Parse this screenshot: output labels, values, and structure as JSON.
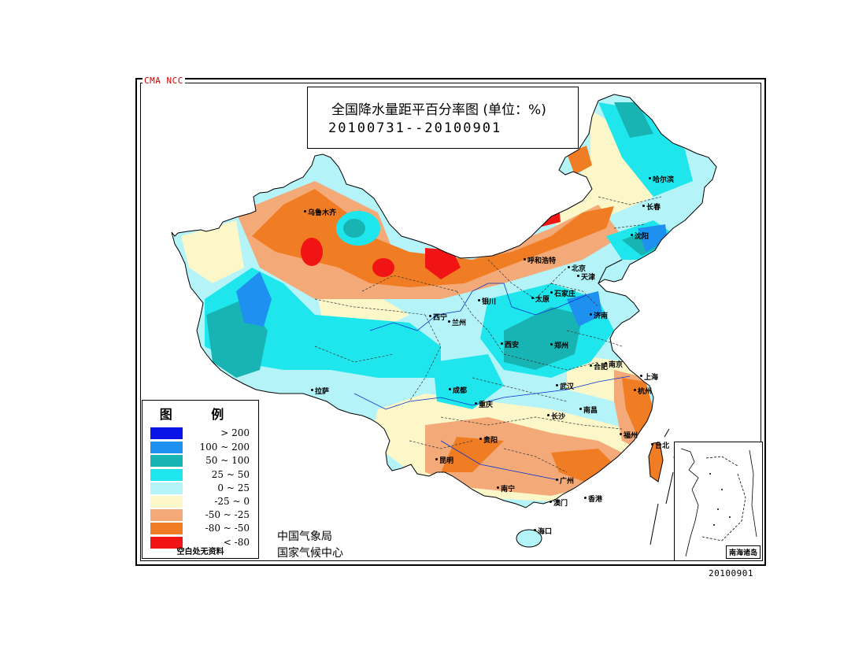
{
  "watermark": "CMA  NCC",
  "title": {
    "main": "全国降水量距平百分率图 (单位：%)",
    "date_range": "20100731--20100901"
  },
  "legend": {
    "title": "图  例",
    "note": "空白处无资料",
    "items": [
      {
        "label": "> 200",
        "color": "#0a14e6"
      },
      {
        "label": "100 ~ 200",
        "color": "#1e90f0"
      },
      {
        "label": "50 ~ 100",
        "color": "#18b4b4"
      },
      {
        "label": "25 ~ 50",
        "color": "#1ee6ec"
      },
      {
        "label": "0 ~ 25",
        "color": "#b4f4f8"
      },
      {
        "label": "-25 ~ 0",
        "color": "#fcf7c8"
      },
      {
        "label": "-50 ~ -25",
        "color": "#f4aa78"
      },
      {
        "label": "-80 ~ -50",
        "color": "#f07d23"
      },
      {
        "label": "< -80",
        "color": "#f01414"
      }
    ]
  },
  "agency": {
    "line1": "中国气象局",
    "line2": "国家气候中心"
  },
  "inset_label": "南海诸岛",
  "footer_date": "20100901",
  "cities": [
    {
      "name": "乌鲁木齐"
    },
    {
      "name": "哈尔滨"
    },
    {
      "name": "长春"
    },
    {
      "name": "沈阳"
    },
    {
      "name": "呼和浩特"
    },
    {
      "name": "北京"
    },
    {
      "name": "天津"
    },
    {
      "name": "太原"
    },
    {
      "name": "石家庄"
    },
    {
      "name": "银川"
    },
    {
      "name": "西宁"
    },
    {
      "name": "兰州"
    },
    {
      "name": "济南"
    },
    {
      "name": "西安"
    },
    {
      "name": "郑州"
    },
    {
      "name": "合肥"
    },
    {
      "name": "南京"
    },
    {
      "name": "上海"
    },
    {
      "name": "杭州"
    },
    {
      "name": "武汉"
    },
    {
      "name": "成都"
    },
    {
      "name": "重庆"
    },
    {
      "name": "拉萨"
    },
    {
      "name": "长沙"
    },
    {
      "name": "南昌"
    },
    {
      "name": "福州"
    },
    {
      "name": "台北"
    },
    {
      "name": "贵阳"
    },
    {
      "name": "昆明"
    },
    {
      "name": "南宁"
    },
    {
      "name": "广州"
    },
    {
      "name": "香港"
    },
    {
      "name": "澳门"
    },
    {
      "name": "海口"
    }
  ]
}
